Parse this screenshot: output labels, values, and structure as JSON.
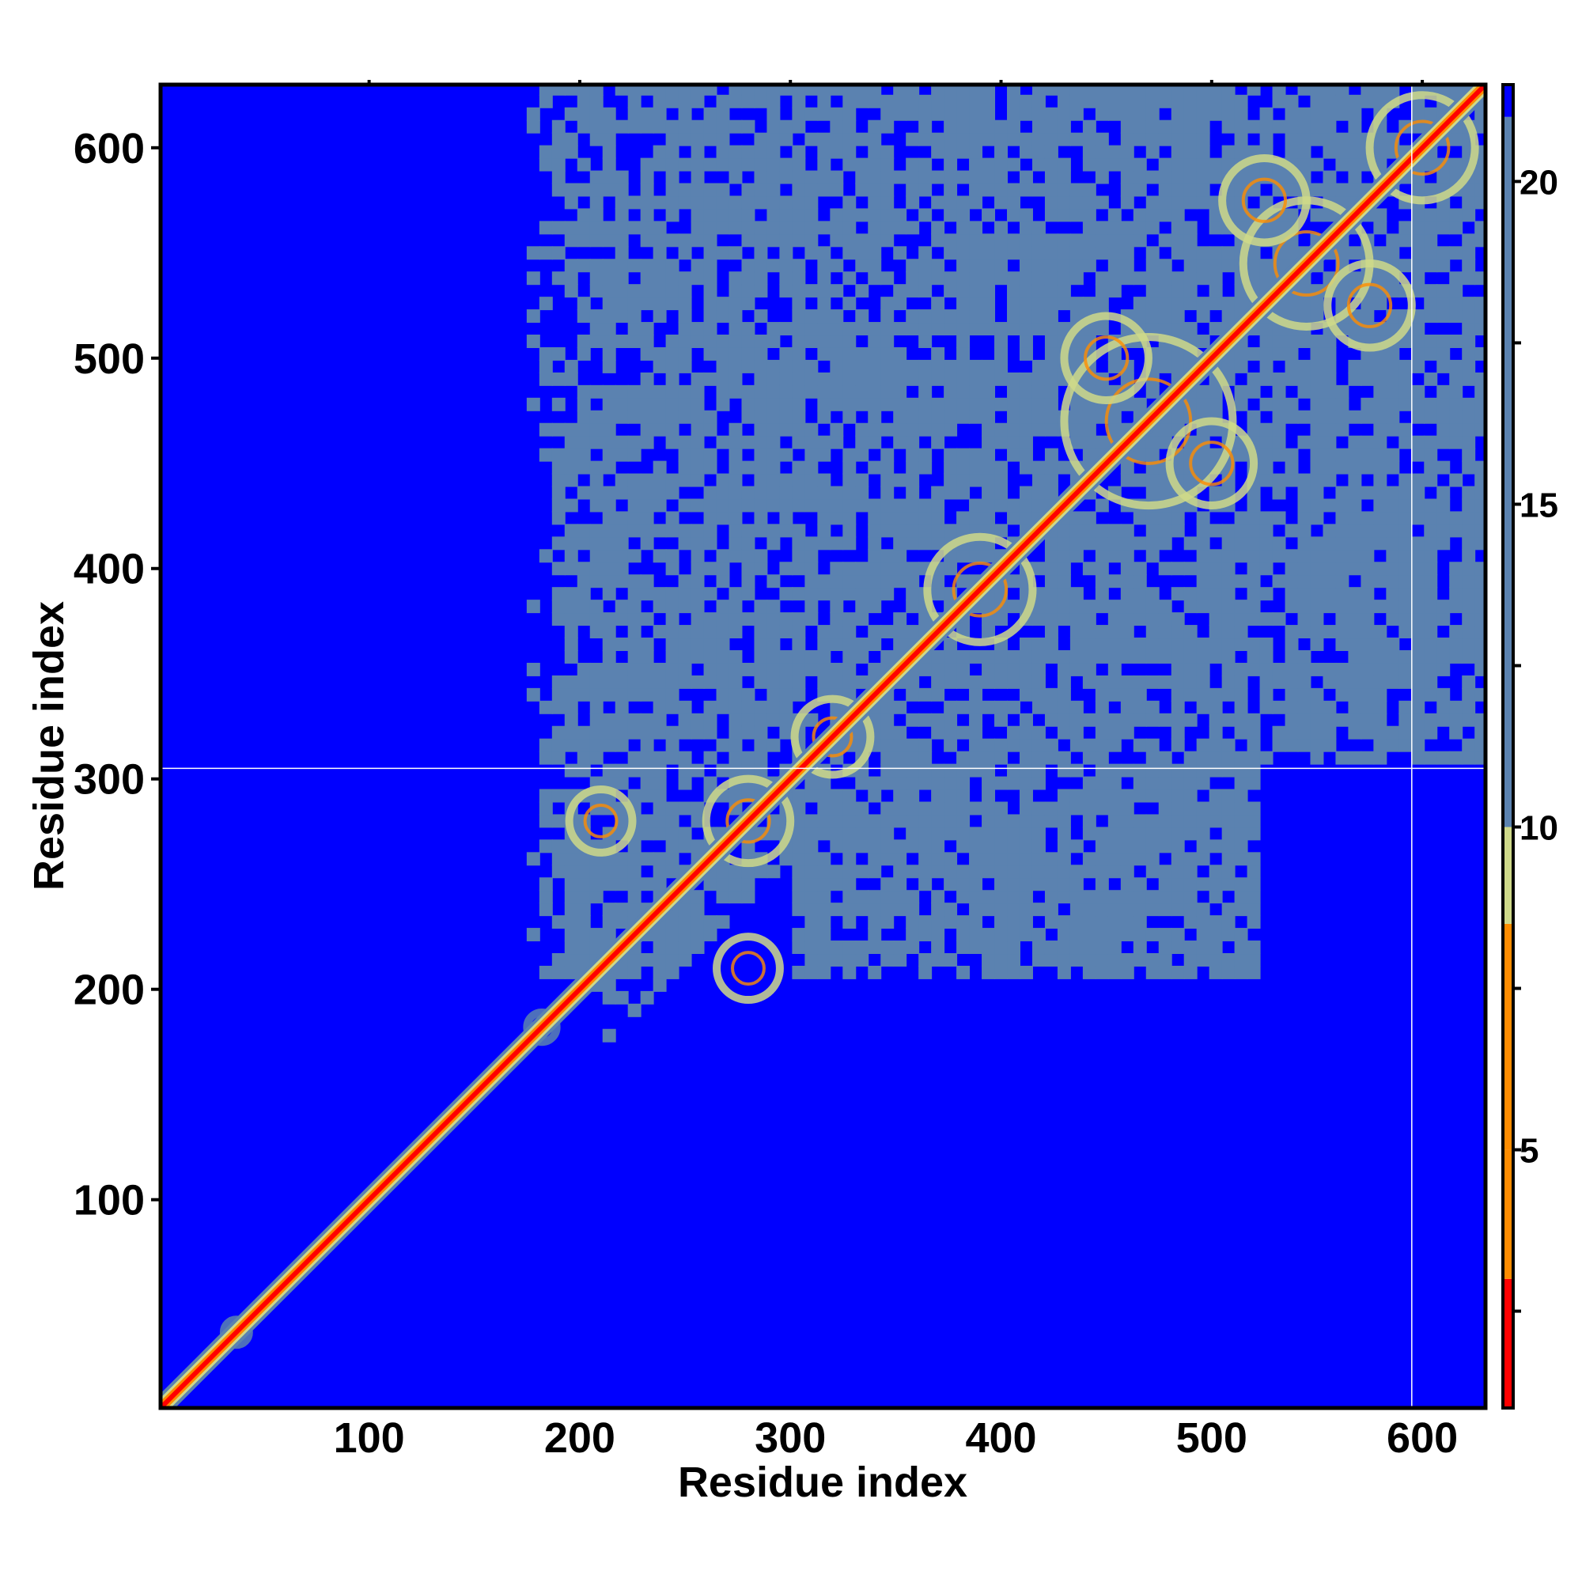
{
  "chart_data": {
    "type": "heatmap",
    "title": "",
    "xlabel": "Residue index",
    "ylabel": "Residue index",
    "xlim": [
      1,
      630
    ],
    "ylim": [
      1,
      630
    ],
    "x_ticks": [
      100,
      200,
      300,
      400,
      500,
      600
    ],
    "y_ticks": [
      100,
      200,
      300,
      400,
      500,
      600
    ],
    "colorbar": {
      "range": [
        1,
        21.5
      ],
      "ticks": [
        5,
        10,
        15,
        20
      ],
      "colors": {
        "near": "#ff0000",
        "mid": "#ff8c00",
        "contact": "#cfd98a",
        "far": "#5b82b0",
        "none": "#0000ff"
      },
      "boundaries": [
        1,
        3,
        5,
        8.5,
        10,
        21,
        21.5
      ]
    },
    "matrix_description": "Residue-residue distance map; diagonal band of short distances, structured region between residues ~200 and ~630",
    "diagonal": {
      "from": 1,
      "to": 630,
      "value": 2
    },
    "structured_region": {
      "from": 175,
      "to": 630,
      "value_range": [
        10,
        20
      ]
    },
    "gap_lines": {
      "x": 595,
      "y": 305
    },
    "contact_features": [
      {
        "cx": 280,
        "cy": 280,
        "size": 20,
        "value": 6
      },
      {
        "cx": 320,
        "cy": 320,
        "size": 18,
        "value": 6
      },
      {
        "cx": 390,
        "cy": 390,
        "size": 25,
        "value": 6
      },
      {
        "cx": 470,
        "cy": 470,
        "size": 40,
        "value": 6
      },
      {
        "cx": 545,
        "cy": 545,
        "size": 30,
        "value": 6
      },
      {
        "cx": 600,
        "cy": 600,
        "size": 25,
        "value": 6
      },
      {
        "cx": 210,
        "cy": 280,
        "size": 15,
        "value": 8
      },
      {
        "cx": 280,
        "cy": 210,
        "size": 15,
        "value": 8
      },
      {
        "cx": 500,
        "cy": 450,
        "size": 20,
        "value": 8
      },
      {
        "cx": 450,
        "cy": 500,
        "size": 20,
        "value": 8
      },
      {
        "cx": 575,
        "cy": 525,
        "size": 20,
        "value": 8
      },
      {
        "cx": 525,
        "cy": 575,
        "size": 20,
        "value": 8
      },
      {
        "cx": 37,
        "cy": 37,
        "size": 6,
        "value": 12
      },
      {
        "cx": 182,
        "cy": 182,
        "size": 7,
        "value": 12
      }
    ]
  }
}
